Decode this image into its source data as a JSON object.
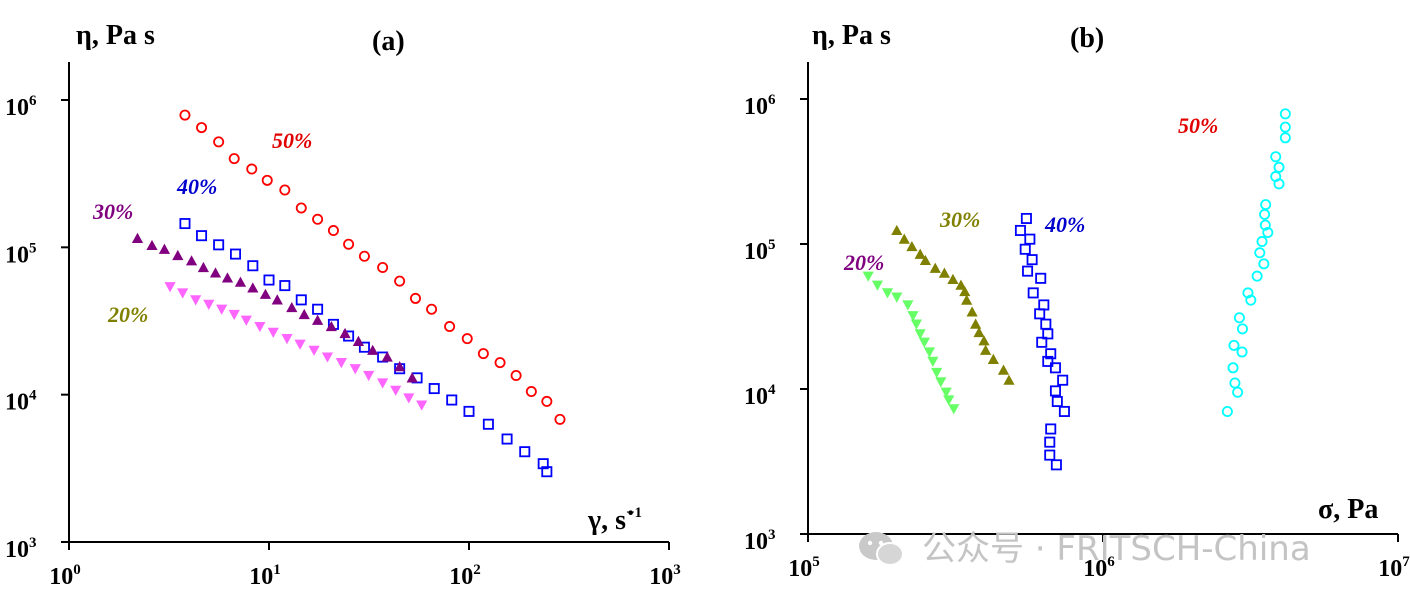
{
  "chart_data": [
    {
      "type": "scatter",
      "panel_label": "(a)",
      "ylabel": "η, Pa s",
      "xlabel": "γ, s",
      "xlabel_dot": "·",
      "xlabel_exp": "−1",
      "x_scale": "log",
      "y_scale": "log",
      "xlim": [
        1,
        1000
      ],
      "ylim": [
        1000,
        2000000
      ],
      "x_ticks": [
        {
          "value": 1,
          "base": "10",
          "exp": "0"
        },
        {
          "value": 10,
          "base": "10",
          "exp": "1"
        },
        {
          "value": 100,
          "base": "10",
          "exp": "2"
        },
        {
          "value": 1000,
          "base": "10",
          "exp": "3"
        }
      ],
      "y_ticks": [
        {
          "value": 1000,
          "base": "10",
          "exp": "3"
        },
        {
          "value": 10000,
          "base": "10",
          "exp": "4"
        },
        {
          "value": 100000,
          "base": "10",
          "exp": "5"
        },
        {
          "value": 1000000,
          "base": "10",
          "exp": "6"
        }
      ],
      "grid": false,
      "series": [
        {
          "name": "50%",
          "color": "#ff0000",
          "marker": "circle",
          "points": [
            [
              3.8,
              790000
            ],
            [
              4.6,
              650000
            ],
            [
              5.6,
              520000
            ],
            [
              6.7,
              400000
            ],
            [
              8.2,
              340000
            ],
            [
              9.8,
              285000
            ],
            [
              12,
              245000
            ],
            [
              14.5,
              185000
            ],
            [
              17.5,
              155000
            ],
            [
              21,
              130000
            ],
            [
              25,
              105000
            ],
            [
              30,
              87000
            ],
            [
              37,
              73000
            ],
            [
              45,
              59000
            ],
            [
              54,
              45000
            ],
            [
              65,
              38000
            ],
            [
              80,
              29000
            ],
            [
              98,
              24000
            ],
            [
              118,
              19000
            ],
            [
              143,
              16500
            ],
            [
              172,
              13500
            ],
            [
              205,
              10500
            ],
            [
              245,
              9000
            ],
            [
              285,
              6800
            ]
          ]
        },
        {
          "name": "40%",
          "color": "#0000ff",
          "marker": "square",
          "points": [
            [
              3.8,
              145000
            ],
            [
              4.6,
              120000
            ],
            [
              5.6,
              104000
            ],
            [
              6.8,
              90000
            ],
            [
              8.3,
              75000
            ],
            [
              10,
              60000
            ],
            [
              12,
              55000
            ],
            [
              14.5,
              44000
            ],
            [
              17.5,
              38000
            ],
            [
              21,
              30000
            ],
            [
              25,
              25000
            ],
            [
              30,
              21000
            ],
            [
              37,
              18000
            ],
            [
              45,
              15000
            ],
            [
              55,
              13000
            ],
            [
              67,
              11000
            ],
            [
              82,
              9200
            ],
            [
              100,
              7700
            ],
            [
              125,
              6300
            ],
            [
              155,
              5000
            ],
            [
              190,
              4100
            ],
            [
              235,
              3400
            ],
            [
              245,
              3000
            ]
          ]
        },
        {
          "name": "30%",
          "color": "#800080",
          "marker": "triangle-up",
          "points": [
            [
              2.2,
              115000
            ],
            [
              2.6,
              103000
            ],
            [
              3.0,
              97000
            ],
            [
              3.5,
              88000
            ],
            [
              4.1,
              81000
            ],
            [
              4.7,
              73000
            ],
            [
              5.4,
              67000
            ],
            [
              6.2,
              62000
            ],
            [
              7.2,
              58000
            ],
            [
              8.3,
              53000
            ],
            [
              9.6,
              48000
            ],
            [
              11,
              44000
            ],
            [
              13,
              39000
            ],
            [
              15,
              35000
            ],
            [
              17.5,
              32000
            ],
            [
              20.5,
              29000
            ],
            [
              24,
              26000
            ],
            [
              28,
              23000
            ],
            [
              33,
              20000
            ],
            [
              39,
              18000
            ],
            [
              45,
              15500
            ],
            [
              52,
              13000
            ]
          ]
        },
        {
          "name": "20%",
          "color": "#ff66ff",
          "marker": "triangle-down",
          "points": [
            [
              3.2,
              54000
            ],
            [
              3.7,
              49000
            ],
            [
              4.3,
              44000
            ],
            [
              5.0,
              41000
            ],
            [
              5.8,
              38000
            ],
            [
              6.7,
              35000
            ],
            [
              7.7,
              32000
            ],
            [
              9.0,
              29000
            ],
            [
              10.5,
              26500
            ],
            [
              12.3,
              24000
            ],
            [
              14.3,
              22000
            ],
            [
              16.8,
              20000
            ],
            [
              19.6,
              18000
            ],
            [
              23,
              16500
            ],
            [
              27,
              15000
            ],
            [
              31.5,
              13500
            ],
            [
              37,
              12000
            ],
            [
              43,
              10700
            ],
            [
              50,
              9500
            ],
            [
              58,
              8500
            ]
          ]
        }
      ],
      "series_labels": [
        {
          "text": "50%",
          "color": "#e00000"
        },
        {
          "text": "40%",
          "color": "#0000cc"
        },
        {
          "text": "30%",
          "color": "#800080"
        },
        {
          "text": "20%",
          "color": "#808000"
        }
      ]
    },
    {
      "type": "scatter",
      "panel_label": "(b)",
      "ylabel": "η, Pa s",
      "xlabel": "σ, Pa",
      "x_scale": "log",
      "y_scale": "log",
      "xlim": [
        100000,
        10000000
      ],
      "ylim": [
        1000,
        2000000
      ],
      "x_ticks": [
        {
          "value": 100000,
          "base": "10",
          "exp": "5"
        },
        {
          "value": 1000000,
          "base": "10",
          "exp": "6"
        },
        {
          "value": 10000000,
          "base": "10",
          "exp": "7"
        }
      ],
      "y_ticks": [
        {
          "value": 1000,
          "base": "10",
          "exp": "3"
        },
        {
          "value": 10000,
          "base": "10",
          "exp": "4"
        },
        {
          "value": 100000,
          "base": "10",
          "exp": "5"
        },
        {
          "value": 1000000,
          "base": "10",
          "exp": "6"
        }
      ],
      "grid": false,
      "series": [
        {
          "name": "50%",
          "color": "#00ffff",
          "marker": "circle",
          "points": [
            [
              2640000,
              7000
            ],
            [
              2860000,
              9500
            ],
            [
              2800000,
              11000
            ],
            [
              2760000,
              14000
            ],
            [
              2960000,
              18000
            ],
            [
              2780000,
              20000
            ],
            [
              2970000,
              26000
            ],
            [
              2900000,
              31000
            ],
            [
              3170000,
              41000
            ],
            [
              3100000,
              46000
            ],
            [
              3330000,
              60000
            ],
            [
              3510000,
              73000
            ],
            [
              3400000,
              87000
            ],
            [
              3460000,
              104000
            ],
            [
              3620000,
              120000
            ],
            [
              3550000,
              135000
            ],
            [
              3530000,
              160000
            ],
            [
              3560000,
              187000
            ],
            [
              3950000,
              260000
            ],
            [
              3850000,
              292000
            ],
            [
              3950000,
              338000
            ],
            [
              3850000,
              400000
            ],
            [
              4150000,
              540000
            ],
            [
              4150000,
              640000
            ],
            [
              4150000,
              790000
            ]
          ]
        },
        {
          "name": "40%",
          "color": "#0000ff",
          "marker": "square",
          "points": [
            [
              695000,
              3000
            ],
            [
              660000,
              3500
            ],
            [
              660000,
              4300
            ],
            [
              665000,
              5300
            ],
            [
              740000,
              7000
            ],
            [
              700000,
              8200
            ],
            [
              690000,
              9700
            ],
            [
              730000,
              11500
            ],
            [
              690000,
              14000
            ],
            [
              650000,
              15500
            ],
            [
              665000,
              17500
            ],
            [
              620000,
              21000
            ],
            [
              650000,
              24000
            ],
            [
              640000,
              28000
            ],
            [
              610000,
              33000
            ],
            [
              630000,
              38000
            ],
            [
              580000,
              46000
            ],
            [
              615000,
              58000
            ],
            [
              555000,
              65000
            ],
            [
              575000,
              78000
            ],
            [
              545000,
              92000
            ],
            [
              565000,
              108000
            ],
            [
              525000,
              124000
            ],
            [
              550000,
              150000
            ]
          ]
        },
        {
          "name": "30%",
          "color": "#808000",
          "marker": "triangle-up",
          "points": [
            [
              480000,
              11500
            ],
            [
              460000,
              13500
            ],
            [
              425000,
              16000
            ],
            [
              400000,
              18500
            ],
            [
              395000,
              21500
            ],
            [
              380000,
              24500
            ],
            [
              370000,
              28000
            ],
            [
              360000,
              34000
            ],
            [
              345000,
              41000
            ],
            [
              340000,
              47000
            ],
            [
              330000,
              52000
            ],
            [
              310000,
              57000
            ],
            [
              290000,
              63000
            ],
            [
              270000,
              68000
            ],
            [
              250000,
              77000
            ],
            [
              240000,
              85000
            ],
            [
              225000,
              96000
            ],
            [
              212000,
              108000
            ],
            [
              200000,
              124000
            ]
          ]
        },
        {
          "name": "20%",
          "color": "#66ff66",
          "marker": "triangle-down",
          "points": [
            [
              160000,
              60000
            ],
            [
              172000,
              52000
            ],
            [
              186000,
              46000
            ],
            [
              200000,
              43000
            ],
            [
              218000,
              38000
            ],
            [
              227000,
              32000
            ],
            [
              233000,
              28000
            ],
            [
              240000,
              24000
            ],
            [
              248000,
              21000
            ],
            [
              258000,
              18000
            ],
            [
              265000,
              15500
            ],
            [
              273000,
              13000
            ],
            [
              282000,
              11200
            ],
            [
              294000,
              9500
            ],
            [
              300000,
              8400
            ],
            [
              312000,
              7300
            ]
          ]
        }
      ],
      "series_labels": [
        {
          "text": "50%",
          "color": "#e00000"
        },
        {
          "text": "40%",
          "color": "#0000cc"
        },
        {
          "text": "30%",
          "color": "#808000"
        },
        {
          "text": "20%",
          "color": "#800080"
        }
      ]
    }
  ],
  "watermark": {
    "text": "公众号 · FRITSCH-China",
    "icon": "wechat-icon"
  }
}
